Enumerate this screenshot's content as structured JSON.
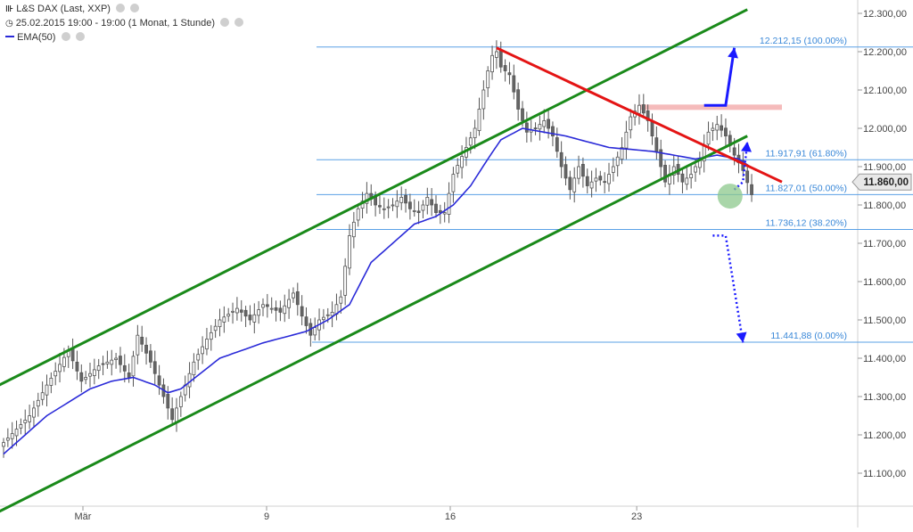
{
  "header": {
    "instrument": "L&S DAX (Last, XXP)",
    "period": "25.02.2015 19:00 - 19:00 (1 Monat, 1 Stunde)",
    "indicator": "EMA(50)"
  },
  "colors": {
    "candle_up": "#ffffff",
    "candle_down": "#666666",
    "candle_outline": "#555555",
    "ema": "#2a2ad8",
    "channel": "#1a8a1a",
    "resistance": "#e41414",
    "fib_lines": "#5aa0e6",
    "arrows": "#1a1aff",
    "resistance_zone": "#f4b4b4",
    "target_circle": "#8cc88c",
    "last_price_label": "#e8e8e8"
  },
  "chart_data": {
    "type": "candlestick",
    "title": "L&S DAX (Last, XXP)",
    "timeframe": "1 Stunde",
    "ylim": [
      11050,
      12340
    ],
    "y_ticks": [
      "11.100,00",
      "11.200,00",
      "11.300,00",
      "11.400,00",
      "11.500,00",
      "11.600,00",
      "11.700,00",
      "11.800,00",
      "11.900,00",
      "12.000,00",
      "12.100,00",
      "12.200,00",
      "12.300,00"
    ],
    "y_tick_values": [
      11100,
      11200,
      11300,
      11400,
      11500,
      11600,
      11700,
      11800,
      11900,
      12000,
      12100,
      12200,
      12300
    ],
    "x_ticks": [
      {
        "label": "Mär",
        "bar": 0.34
      },
      {
        "label": "9",
        "bar": 1.0
      },
      {
        "label": "16",
        "bar": 1.66
      },
      {
        "label": "23",
        "bar": 2.33
      }
    ],
    "last_price": 11860,
    "last_price_label": "11.860,00",
    "close_anchors": [
      [
        0,
        11180
      ],
      [
        6,
        11250
      ],
      [
        10,
        11330
      ],
      [
        15,
        11420
      ],
      [
        18,
        11340
      ],
      [
        22,
        11380
      ],
      [
        26,
        11400
      ],
      [
        29,
        11350
      ],
      [
        31,
        11460
      ],
      [
        34,
        11390
      ],
      [
        37,
        11300
      ],
      [
        39,
        11240
      ],
      [
        41,
        11300
      ],
      [
        44,
        11390
      ],
      [
        47,
        11450
      ],
      [
        50,
        11500
      ],
      [
        54,
        11530
      ],
      [
        57,
        11500
      ],
      [
        60,
        11540
      ],
      [
        64,
        11520
      ],
      [
        67,
        11570
      ],
      [
        69,
        11510
      ],
      [
        71,
        11460
      ],
      [
        73,
        11500
      ],
      [
        76,
        11520
      ],
      [
        78,
        11560
      ],
      [
        80,
        11720
      ],
      [
        82,
        11790
      ],
      [
        84,
        11830
      ],
      [
        86,
        11800
      ],
      [
        88,
        11790
      ],
      [
        90,
        11800
      ],
      [
        92,
        11820
      ],
      [
        94,
        11790
      ],
      [
        96,
        11780
      ],
      [
        98,
        11820
      ],
      [
        100,
        11780
      ],
      [
        102,
        11780
      ],
      [
        104,
        11880
      ],
      [
        107,
        11950
      ],
      [
        109,
        12000
      ],
      [
        111,
        12100
      ],
      [
        112,
        12150
      ],
      [
        113,
        12190
      ],
      [
        114,
        12200
      ],
      [
        115,
        12160
      ],
      [
        117,
        12140
      ],
      [
        119,
        12050
      ],
      [
        121,
        11990
      ],
      [
        123,
        12000
      ],
      [
        125,
        12020
      ],
      [
        127,
        11980
      ],
      [
        129,
        11900
      ],
      [
        131,
        11840
      ],
      [
        133,
        11900
      ],
      [
        135,
        11850
      ],
      [
        137,
        11870
      ],
      [
        139,
        11860
      ],
      [
        141,
        11900
      ],
      [
        143,
        11950
      ],
      [
        145,
        12030
      ],
      [
        147,
        12060
      ],
      [
        149,
        12020
      ],
      [
        151,
        11940
      ],
      [
        153,
        11860
      ],
      [
        155,
        11900
      ],
      [
        157,
        11860
      ],
      [
        159,
        11880
      ],
      [
        161,
        11920
      ],
      [
        163,
        11990
      ],
      [
        165,
        12010
      ],
      [
        167,
        11980
      ],
      [
        169,
        11930
      ],
      [
        171,
        11890
      ],
      [
        173,
        11827
      ]
    ],
    "ema_anchors": [
      [
        0,
        11150
      ],
      [
        10,
        11250
      ],
      [
        20,
        11320
      ],
      [
        25,
        11340
      ],
      [
        30,
        11350
      ],
      [
        35,
        11330
      ],
      [
        38,
        11310
      ],
      [
        41,
        11320
      ],
      [
        50,
        11400
      ],
      [
        60,
        11440
      ],
      [
        70,
        11470
      ],
      [
        75,
        11500
      ],
      [
        80,
        11540
      ],
      [
        85,
        11650
      ],
      [
        90,
        11700
      ],
      [
        95,
        11750
      ],
      [
        100,
        11770
      ],
      [
        104,
        11800
      ],
      [
        108,
        11850
      ],
      [
        112,
        11920
      ],
      [
        115,
        11970
      ],
      [
        120,
        12000
      ],
      [
        130,
        11980
      ],
      [
        140,
        11950
      ],
      [
        150,
        11940
      ],
      [
        155,
        11930
      ],
      [
        160,
        11920
      ],
      [
        165,
        11930
      ],
      [
        170,
        11920
      ],
      [
        174,
        11890
      ]
    ],
    "fibonacci": [
      {
        "level": "100.00%",
        "value": 12212.15,
        "label": "12.212,15 (100.00%)"
      },
      {
        "level": "61.80%",
        "value": 11917.91,
        "label": "11.917,91 (61.80%)"
      },
      {
        "level": "50.00%",
        "value": 11827.01,
        "label": "11.827,01 (50.00%)"
      },
      {
        "level": "38.20%",
        "value": 11736.12,
        "label": "11.736,12 (38.20%)"
      },
      {
        "level": "0.00%",
        "value": 11441.88,
        "label": "11.441,88 (0.00%)"
      }
    ],
    "trendlines": [
      {
        "name": "upper channel",
        "color": "channel",
        "from": [
          -1,
          11330
        ],
        "to": [
          172,
          12310
        ]
      },
      {
        "name": "lower channel",
        "color": "channel",
        "from": [
          -1,
          11000
        ],
        "to": [
          172,
          11980
        ]
      },
      {
        "name": "resistance",
        "color": "resistance",
        "from": [
          114,
          12210
        ],
        "to": [
          180,
          11860
        ]
      }
    ],
    "resistance_zone": {
      "from_bar": 147,
      "to_bar": 180,
      "value": 12055
    },
    "annotations": [
      {
        "type": "arrow-up",
        "style": "solid",
        "points": [
          [
            162,
            12060
          ],
          [
            167,
            12060
          ],
          [
            169,
            12210
          ]
        ]
      },
      {
        "type": "arrow-up",
        "style": "dotted",
        "points": [
          [
            169,
            11840
          ],
          [
            171,
            11860
          ],
          [
            172,
            11965
          ]
        ]
      },
      {
        "type": "arrow-down",
        "style": "dotted",
        "points": [
          [
            164,
            11720
          ],
          [
            167,
            11720
          ],
          [
            171,
            11441
          ]
        ]
      },
      {
        "type": "circle",
        "at": [
          168,
          11823
        ]
      }
    ]
  }
}
